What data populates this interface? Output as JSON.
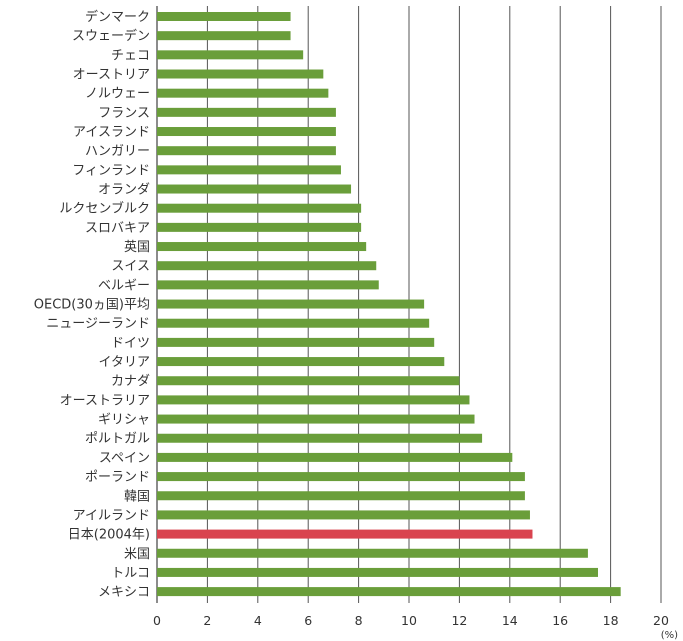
{
  "chart_data": {
    "type": "bar",
    "orientation": "horizontal",
    "categories": [
      "デンマーク",
      "スウェーデン",
      "チェコ",
      "オーストリア",
      "ノルウェー",
      "フランス",
      "アイスランド",
      "ハンガリー",
      "フィンランド",
      "オランダ",
      "ルクセンブルク",
      "スロバキア",
      "英国",
      "スイス",
      "ベルギー",
      "OECD(30ヵ国)平均",
      "ニュージーランド",
      "ドイツ",
      "イタリア",
      "カナダ",
      "オーストラリア",
      "ギリシャ",
      "ポルトガル",
      "スペイン",
      "ポーランド",
      "韓国",
      "アイルランド",
      "日本(2004年)",
      "米国",
      "トルコ",
      "メキシコ"
    ],
    "values": [
      5.3,
      5.3,
      5.8,
      6.6,
      6.8,
      7.1,
      7.1,
      7.1,
      7.3,
      7.7,
      8.1,
      8.1,
      8.3,
      8.7,
      8.8,
      10.6,
      10.8,
      11.0,
      11.4,
      12.0,
      12.4,
      12.6,
      12.9,
      14.1,
      14.6,
      14.6,
      14.8,
      14.9,
      17.1,
      17.5,
      18.4
    ],
    "highlight_index": 27,
    "x_ticks": [
      "0",
      "2",
      "4",
      "6",
      "8",
      "10",
      "12",
      "14",
      "16",
      "18",
      "20"
    ],
    "xlim": [
      0,
      20
    ],
    "unit": "(%)",
    "grid": true,
    "colors": {
      "bar": "#6a9e3a",
      "highlight": "#d9434f",
      "highlight_label": "#d9434f",
      "grid": "#555555",
      "text": "#333333"
    }
  }
}
